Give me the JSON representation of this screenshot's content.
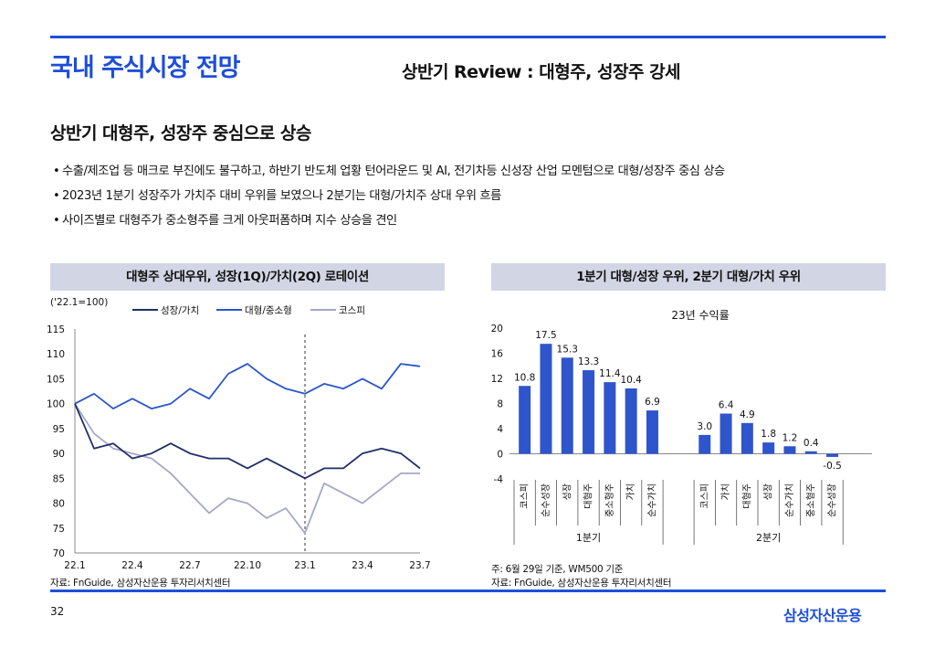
{
  "header": {
    "title": "국내 주식시장 전망",
    "subtitle": "상반기 Review : 대형주, 성장주 강세"
  },
  "section": {
    "heading": "상반기 대형주, 성장주 중심으로 상승",
    "bullets": [
      "수출/제조업 등 매크로 부진에도 불구하고, 하반기 반도체 업황 턴어라운드 및 AI, 전기차등 신성장 산업 모멘텀으로 대형/성장주 중심 상승",
      "2023년 1분기 성장주가 가치주 대비 우위를 보였으나 2분기는 대형/가치주 상대 우위 흐름",
      "사이즈별로 대형주가 중소형주를 크게 아웃퍼폼하며 지수 상승을 견인"
    ]
  },
  "left_panel": {
    "heading": "대형주 상대우위, 성장(1Q)/가치(2Q) 로테이션",
    "unit_label": "('22.1=100)",
    "source": "자료: FnGuide, 삼성자산운용 투자리서치센터"
  },
  "right_panel": {
    "heading": "1분기 대형/성장 우위, 2분기 대형/가치 우위",
    "chart_title": "23년 수익률",
    "footnote": "주: 6월 29일 기준, WM500 기준",
    "source": "자료: FnGuide, 삼성자산운용 투자리서치센터"
  },
  "footer": {
    "page": "32",
    "brand": "삼성자산운용"
  },
  "colors": {
    "accent": "#1e4ed8",
    "growth_value": "#1f2f66",
    "large_small": "#2b56c9",
    "kospi": "#a3a8c8",
    "bar": "#2f55cc",
    "panel_header": "#d2d6e4"
  },
  "chart_data": [
    {
      "type": "line",
      "ylim": [
        70,
        115
      ],
      "yticks": [
        70,
        75,
        80,
        85,
        90,
        95,
        100,
        105,
        110,
        115
      ],
      "xticks": [
        "22.1",
        "22.4",
        "22.7",
        "22.10",
        "23.1",
        "23.4",
        "23.7"
      ],
      "legend_position": "top",
      "annotations": [
        "vertical dashed line at 23.1"
      ],
      "x": [
        "22.1",
        "22.2",
        "22.3",
        "22.4",
        "22.5",
        "22.6",
        "22.7",
        "22.8",
        "22.9",
        "22.10",
        "22.11",
        "22.12",
        "23.1",
        "23.2",
        "23.3",
        "23.4",
        "23.5",
        "23.6",
        "23.7"
      ],
      "series": [
        {
          "name": "성장/가치",
          "values": [
            100,
            91,
            92,
            89,
            90,
            92,
            90,
            89,
            89,
            87,
            89,
            87,
            85,
            87,
            87,
            90,
            91,
            90,
            87
          ]
        },
        {
          "name": "대형/중소형",
          "values": [
            100,
            102,
            99,
            101,
            99,
            100,
            103,
            101,
            106,
            108,
            105,
            103,
            102,
            104,
            103,
            105,
            103,
            108,
            107.5
          ]
        },
        {
          "name": "코스피",
          "values": [
            100,
            94,
            91,
            90,
            89,
            86,
            82,
            78,
            81,
            80,
            77,
            79,
            74,
            84,
            82,
            80,
            83,
            86,
            86
          ]
        }
      ]
    },
    {
      "type": "bar",
      "title": "23년 수익률",
      "ylim": [
        -4,
        20
      ],
      "yticks": [
        -4,
        0,
        4,
        8,
        12,
        16,
        20
      ],
      "groups": [
        {
          "name": "1분기",
          "categories": [
            "코스피",
            "순수성장",
            "성장",
            "대형주",
            "중소형주",
            "가치",
            "순수가치"
          ],
          "values": [
            10.8,
            17.5,
            15.3,
            13.3,
            11.4,
            10.4,
            6.9
          ]
        },
        {
          "name": "2분기",
          "categories": [
            "코스피",
            "가치",
            "대형주",
            "성장",
            "순수가치",
            "중소형주",
            "순수성장"
          ],
          "values": [
            3.0,
            6.4,
            4.9,
            1.8,
            1.2,
            0.4,
            -0.5
          ]
        }
      ]
    }
  ]
}
